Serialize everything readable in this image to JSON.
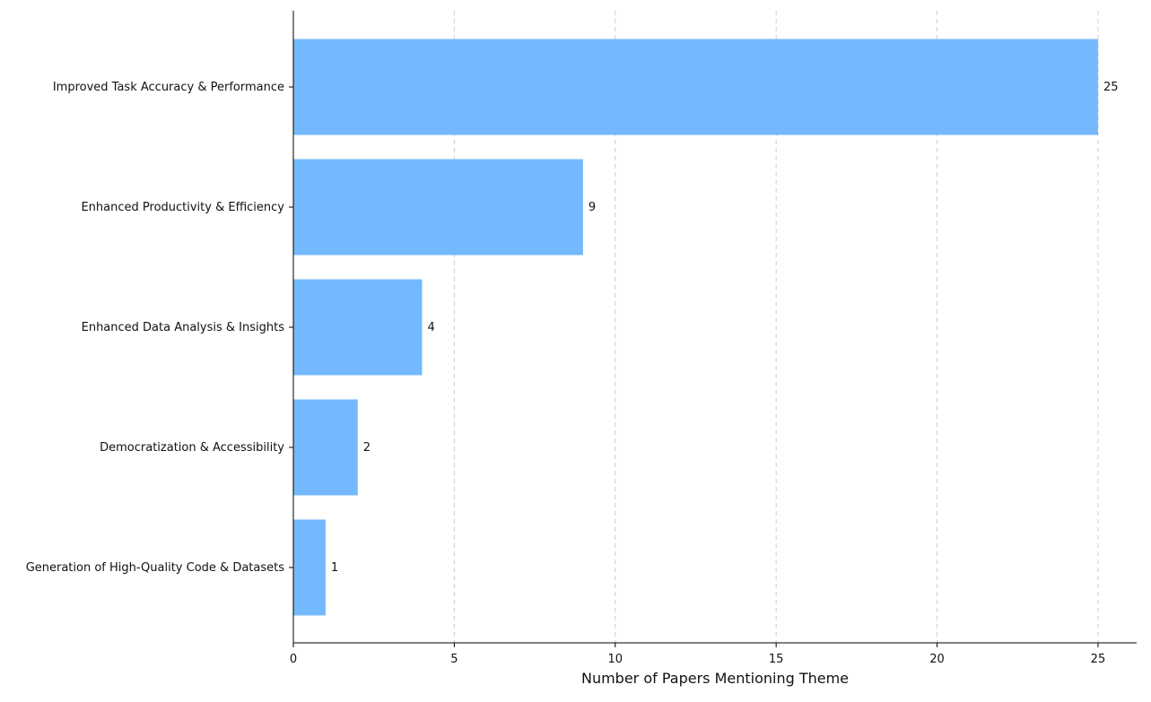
{
  "chart_data": {
    "type": "bar",
    "orientation": "horizontal",
    "categories": [
      "Improved Task Accuracy & Performance",
      "Enhanced Productivity & Efficiency",
      "Enhanced Data Analysis & Insights",
      "Democratization & Accessibility",
      "Generation of High-Quality Code & Datasets"
    ],
    "values": [
      25,
      9,
      4,
      2,
      1
    ],
    "data_labels": [
      "25",
      "9",
      "4",
      "2",
      "1"
    ],
    "xlabel": "Number of Papers Mentioning Theme",
    "ylabel": "",
    "xlim": [
      0,
      26.2
    ],
    "x_ticks": [
      0,
      5,
      10,
      15,
      20,
      25
    ],
    "x_tick_labels": [
      "0",
      "5",
      "10",
      "15",
      "20",
      "25"
    ],
    "grid": "vertical dashed",
    "bar_color": "#74b8fd",
    "grid_color": "#cccccc"
  }
}
